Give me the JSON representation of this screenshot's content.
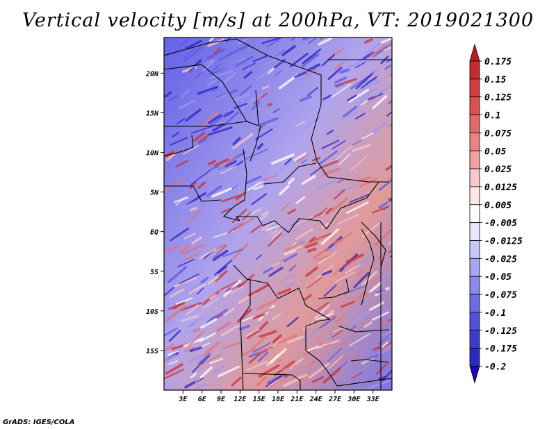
{
  "title": "Vertical velocity [m/s] at 200hPa, VT: 2019021300",
  "credit": "GrADS: IGES/COLA",
  "map": {
    "field": "vertical velocity",
    "units": "m/s",
    "level": "200hPa",
    "valid_time": "2019021300",
    "lat_range": [
      -20,
      24.5
    ],
    "lon_range": [
      0,
      36
    ],
    "lat_labels": [
      {
        "lat": 20,
        "text": "20N"
      },
      {
        "lat": 15,
        "text": "15N"
      },
      {
        "lat": 10,
        "text": "10N"
      },
      {
        "lat": 5,
        "text": "5N"
      },
      {
        "lat": 0,
        "text": "EQ"
      },
      {
        "lat": -5,
        "text": "5S"
      },
      {
        "lat": -10,
        "text": "10S"
      },
      {
        "lat": -15,
        "text": "15S"
      }
    ],
    "lon_labels": [
      {
        "lon": 3,
        "text": "3E"
      },
      {
        "lon": 6,
        "text": "6E"
      },
      {
        "lon": 9,
        "text": "9E"
      },
      {
        "lon": 12,
        "text": "12E"
      },
      {
        "lon": 15,
        "text": "15E"
      },
      {
        "lon": 18,
        "text": "18E"
      },
      {
        "lon": 21,
        "text": "21E"
      },
      {
        "lon": 24,
        "text": "24E"
      },
      {
        "lon": 27,
        "text": "27E"
      },
      {
        "lon": 30,
        "text": "30E"
      },
      {
        "lon": 33,
        "text": "33E"
      }
    ]
  },
  "colorbar": {
    "labels": [
      "0.175",
      "0.15",
      "0.125",
      "0.1",
      "0.075",
      "0.05",
      "0.025",
      "0.0125",
      "0.005",
      "-0.005",
      "-0.0125",
      "-0.025",
      "-0.05",
      "-0.075",
      "-0.1",
      "-0.125",
      "-0.175",
      "-0.2"
    ],
    "top_color": "#b41e1e",
    "bottom_color": "#1e0ab4",
    "colors": [
      "#b41e1e",
      "#c62c2c",
      "#d23c3c",
      "#dc5050",
      "#e46868",
      "#ec8282",
      "#f2a0a0",
      "#f8c8c8",
      "#fce6e6",
      "#ffffff",
      "#e6e6fc",
      "#c8c8f8",
      "#a6a6f2",
      "#8a8aea",
      "#6e6ee4",
      "#5050dc",
      "#3c3cd0",
      "#2a2ac4",
      "#1e0ab4"
    ]
  }
}
